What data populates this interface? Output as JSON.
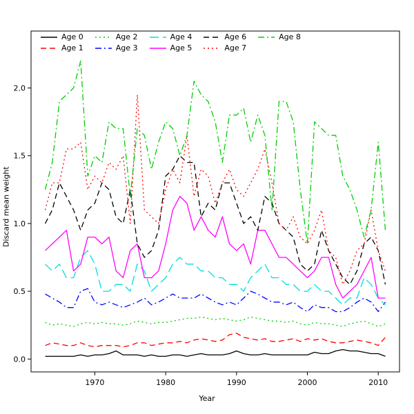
{
  "chart_data": {
    "type": "line",
    "title": "",
    "xlabel": "Year",
    "ylabel": "Discard mean weight",
    "grid": false,
    "legend_position": "top-left-horizontal",
    "xlim": [
      1961,
      2013
    ],
    "ylim": [
      -0.095,
      2.42
    ],
    "xticks": [
      1970,
      1980,
      1990,
      2000,
      2010
    ],
    "yticks": [
      0.0,
      0.5,
      1.0,
      1.5,
      2.0
    ],
    "x": [
      1963,
      1964,
      1965,
      1966,
      1967,
      1968,
      1969,
      1970,
      1971,
      1972,
      1973,
      1974,
      1975,
      1976,
      1977,
      1978,
      1979,
      1980,
      1981,
      1982,
      1983,
      1984,
      1985,
      1986,
      1987,
      1988,
      1989,
      1990,
      1991,
      1992,
      1993,
      1994,
      1995,
      1996,
      1997,
      1998,
      1999,
      2000,
      2001,
      2002,
      2003,
      2004,
      2005,
      2006,
      2007,
      2008,
      2009,
      2010,
      2011
    ],
    "series": [
      {
        "name": "Age 0",
        "color": "#000000",
        "dash": "solid",
        "values": [
          0.02,
          0.02,
          0.02,
          0.02,
          0.02,
          0.03,
          0.02,
          0.03,
          0.03,
          0.04,
          0.06,
          0.03,
          0.03,
          0.03,
          0.02,
          0.03,
          0.02,
          0.02,
          0.03,
          0.03,
          0.02,
          0.03,
          0.04,
          0.03,
          0.03,
          0.03,
          0.04,
          0.06,
          0.04,
          0.03,
          0.03,
          0.04,
          0.03,
          0.03,
          0.03,
          0.03,
          0.03,
          0.03,
          0.05,
          0.04,
          0.04,
          0.06,
          0.07,
          0.06,
          0.06,
          0.05,
          0.04,
          0.04,
          0.02
        ]
      },
      {
        "name": "Age 1",
        "color": "#ff0000",
        "dash": "dashed",
        "values": [
          0.1,
          0.12,
          0.11,
          0.1,
          0.1,
          0.12,
          0.1,
          0.09,
          0.1,
          0.1,
          0.1,
          0.09,
          0.1,
          0.12,
          0.12,
          0.1,
          0.11,
          0.12,
          0.12,
          0.13,
          0.12,
          0.14,
          0.15,
          0.14,
          0.13,
          0.14,
          0.18,
          0.19,
          0.16,
          0.15,
          0.14,
          0.15,
          0.13,
          0.13,
          0.14,
          0.15,
          0.13,
          0.15,
          0.14,
          0.15,
          0.13,
          0.12,
          0.12,
          0.13,
          0.14,
          0.13,
          0.12,
          0.1,
          0.16
        ]
      },
      {
        "name": "Age 2",
        "color": "#00cd00",
        "dash": "dotted",
        "values": [
          0.27,
          0.25,
          0.26,
          0.25,
          0.24,
          0.26,
          0.27,
          0.26,
          0.27,
          0.26,
          0.26,
          0.25,
          0.26,
          0.28,
          0.27,
          0.26,
          0.27,
          0.27,
          0.28,
          0.29,
          0.3,
          0.3,
          0.31,
          0.3,
          0.29,
          0.3,
          0.29,
          0.28,
          0.29,
          0.31,
          0.3,
          0.29,
          0.28,
          0.28,
          0.27,
          0.28,
          0.26,
          0.25,
          0.27,
          0.26,
          0.26,
          0.25,
          0.24,
          0.26,
          0.27,
          0.28,
          0.26,
          0.24,
          0.26
        ]
      },
      {
        "name": "Age 3",
        "color": "#0000ff",
        "dash": "dashdot",
        "values": [
          0.48,
          0.45,
          0.42,
          0.38,
          0.38,
          0.5,
          0.52,
          0.42,
          0.4,
          0.42,
          0.4,
          0.38,
          0.4,
          0.42,
          0.45,
          0.4,
          0.42,
          0.45,
          0.48,
          0.45,
          0.45,
          0.45,
          0.48,
          0.45,
          0.42,
          0.4,
          0.42,
          0.4,
          0.45,
          0.5,
          0.48,
          0.45,
          0.42,
          0.42,
          0.4,
          0.42,
          0.38,
          0.35,
          0.4,
          0.38,
          0.38,
          0.35,
          0.35,
          0.38,
          0.42,
          0.45,
          0.42,
          0.35,
          0.42
        ]
      },
      {
        "name": "Age 4",
        "color": "#00dddd",
        "dash": "longdash",
        "values": [
          0.7,
          0.65,
          0.7,
          0.6,
          0.6,
          0.75,
          0.8,
          0.7,
          0.5,
          0.5,
          0.55,
          0.55,
          0.5,
          0.7,
          0.65,
          0.5,
          0.55,
          0.6,
          0.7,
          0.75,
          0.7,
          0.7,
          0.65,
          0.65,
          0.6,
          0.6,
          0.55,
          0.55,
          0.5,
          0.6,
          0.65,
          0.7,
          0.6,
          0.6,
          0.55,
          0.55,
          0.5,
          0.5,
          0.55,
          0.5,
          0.5,
          0.45,
          0.4,
          0.45,
          0.45,
          0.6,
          0.55,
          0.45,
          0.4
        ]
      },
      {
        "name": "Age 5",
        "color": "#ff00ff",
        "dash": "solid",
        "values": [
          0.8,
          0.85,
          0.9,
          0.95,
          0.65,
          0.7,
          0.9,
          0.9,
          0.85,
          0.9,
          0.65,
          0.6,
          0.8,
          0.85,
          0.6,
          0.6,
          0.65,
          0.85,
          1.1,
          1.2,
          1.15,
          0.95,
          1.05,
          0.95,
          0.9,
          1.05,
          0.85,
          0.8,
          0.85,
          0.7,
          0.95,
          0.95,
          0.85,
          0.75,
          0.75,
          0.7,
          0.65,
          0.6,
          0.65,
          0.75,
          0.75,
          0.55,
          0.45,
          0.5,
          0.55,
          0.65,
          0.75,
          0.45,
          0.45
        ]
      },
      {
        "name": "Age 6",
        "color": "#000000",
        "dash": "dashed",
        "values": [
          1.0,
          1.1,
          1.3,
          1.2,
          1.1,
          0.95,
          1.1,
          1.15,
          1.3,
          1.25,
          1.05,
          1.0,
          1.25,
          0.85,
          0.75,
          0.8,
          0.95,
          1.35,
          1.4,
          1.5,
          1.45,
          1.45,
          1.05,
          1.15,
          1.1,
          1.3,
          1.3,
          1.15,
          1.0,
          1.05,
          0.95,
          1.2,
          1.15,
          1.0,
          0.95,
          0.9,
          0.7,
          0.65,
          0.7,
          0.95,
          0.8,
          0.7,
          0.6,
          0.55,
          0.65,
          0.85,
          0.9,
          0.8,
          0.55
        ]
      },
      {
        "name": "Age 7",
        "color": "#ff0000",
        "dash": "dotted",
        "values": [
          1.1,
          1.3,
          1.3,
          1.55,
          1.55,
          1.6,
          1.25,
          1.35,
          1.3,
          1.45,
          1.4,
          1.5,
          1.0,
          1.95,
          1.1,
          1.05,
          1.0,
          1.25,
          1.4,
          1.3,
          1.65,
          1.2,
          1.4,
          1.35,
          1.15,
          1.3,
          1.4,
          1.25,
          1.2,
          1.3,
          1.4,
          1.55,
          1.3,
          1.0,
          0.95,
          1.05,
          0.9,
          0.85,
          0.95,
          1.1,
          0.8,
          0.75,
          0.55,
          0.65,
          0.8,
          0.85,
          1.1,
          0.8,
          0.65
        ]
      },
      {
        "name": "Age 8",
        "color": "#00cd00",
        "dash": "dashdot",
        "values": [
          1.25,
          1.45,
          1.9,
          1.95,
          2.0,
          2.2,
          1.35,
          1.5,
          1.45,
          1.75,
          1.7,
          1.7,
          1.2,
          1.7,
          1.65,
          1.4,
          1.6,
          1.75,
          1.7,
          1.5,
          1.65,
          2.05,
          1.95,
          1.9,
          1.75,
          1.45,
          1.8,
          1.8,
          1.85,
          1.6,
          1.8,
          1.65,
          1.1,
          1.9,
          1.9,
          1.75,
          1.25,
          0.85,
          1.75,
          1.7,
          1.65,
          1.65,
          1.35,
          1.25,
          1.1,
          0.9,
          1.1,
          1.6,
          0.95
        ]
      }
    ]
  }
}
